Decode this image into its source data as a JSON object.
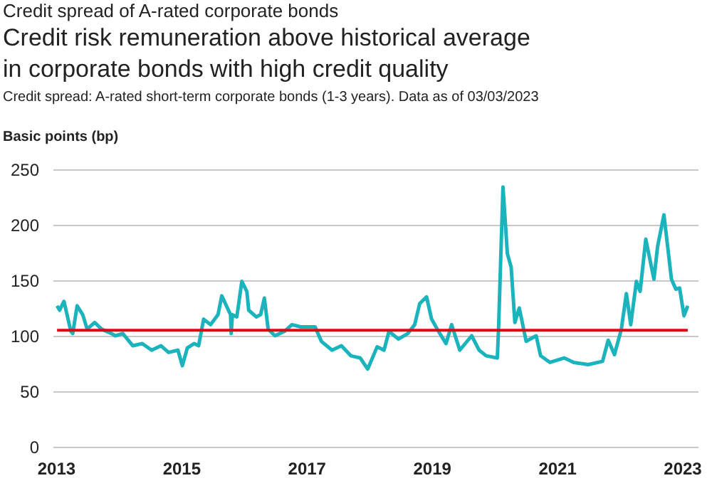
{
  "chart_data": {
    "type": "line",
    "title": "Credit risk remuneration above historical average\nin corporate bonds with high credit quality",
    "subtitle": "Credit spread: A-rated short-term corporate bonds (1-3 years). Data as of 03/03/2023",
    "annotations": [
      "Credit spread of A-rated corporate bonds"
    ],
    "ylabel": "Basic points (bp)",
    "x": [
      2013.02,
      2013.06,
      2013.13,
      2013.24,
      2013.27,
      2013.34,
      2013.43,
      2013.5,
      2013.62,
      2013.73,
      2013.89,
      2013.95,
      2014.07,
      2014.23,
      2014.38,
      2014.53,
      2014.68,
      2014.8,
      2014.95,
      2015.02,
      2015.1,
      2015.21,
      2015.28,
      2015.36,
      2015.47,
      2015.59,
      2015.65,
      2015.74,
      2015.79,
      2015.8,
      2015.82,
      2015.89,
      2015.97,
      2016.05,
      2016.08,
      2016.2,
      2016.27,
      2016.33,
      2016.39,
      2016.5,
      2016.65,
      2016.77,
      2016.91,
      2017.14,
      2017.24,
      2017.41,
      2017.56,
      2017.71,
      2017.86,
      2017.98,
      2018.13,
      2018.24,
      2018.32,
      2018.47,
      2018.62,
      2018.73,
      2018.81,
      2018.92,
      2019.0,
      2019.11,
      2019.23,
      2019.32,
      2019.45,
      2019.64,
      2019.76,
      2019.87,
      2020.05,
      2020.07,
      2020.14,
      2020.21,
      2020.27,
      2020.33,
      2020.4,
      2020.51,
      2020.67,
      2020.74,
      2020.89,
      2021.12,
      2021.27,
      2021.5,
      2021.73,
      2021.82,
      2021.92,
      2022.03,
      2022.11,
      2022.18,
      2022.27,
      2022.33,
      2022.42,
      2022.55,
      2022.61,
      2022.71,
      2022.83,
      2022.9,
      2022.96,
      2023.03,
      2023.09
    ],
    "series": [
      {
        "color": "#1bb3bc",
        "values": [
          127,
          123,
          131,
          104,
          102,
          127,
          119,
          106,
          112,
          106,
          102,
          100,
          102,
          91,
          93,
          87,
          91,
          85,
          87,
          73,
          89,
          93,
          91,
          115,
          110,
          119,
          136,
          125,
          119,
          102,
          119,
          117,
          149,
          140,
          123,
          117,
          119,
          134,
          106,
          100,
          104,
          110,
          108,
          108,
          95,
          87,
          91,
          82,
          80,
          70,
          90,
          87,
          104,
          97,
          102,
          110,
          129,
          135,
          115,
          104,
          93,
          110,
          87,
          100,
          87,
          82,
          80,
          108,
          234,
          174,
          162,
          112,
          125,
          95,
          100,
          82,
          76,
          80,
          76,
          74,
          77,
          96,
          83,
          106,
          138,
          110,
          149,
          140,
          187,
          151,
          181,
          209,
          151,
          142,
          143,
          118,
          127
        ]
      }
    ],
    "xlim": [
      2012.95,
      2023.25
    ],
    "xticks": [
      2013,
      2015,
      2017,
      2019,
      2021,
      2023
    ],
    "ylim": [
      0,
      250
    ],
    "yticks": [
      0,
      50,
      100,
      150,
      200,
      250
    ],
    "ref_lines": [
      {
        "axis": "y",
        "value": 105,
        "color": "#e30613"
      }
    ],
    "grid": "y"
  }
}
